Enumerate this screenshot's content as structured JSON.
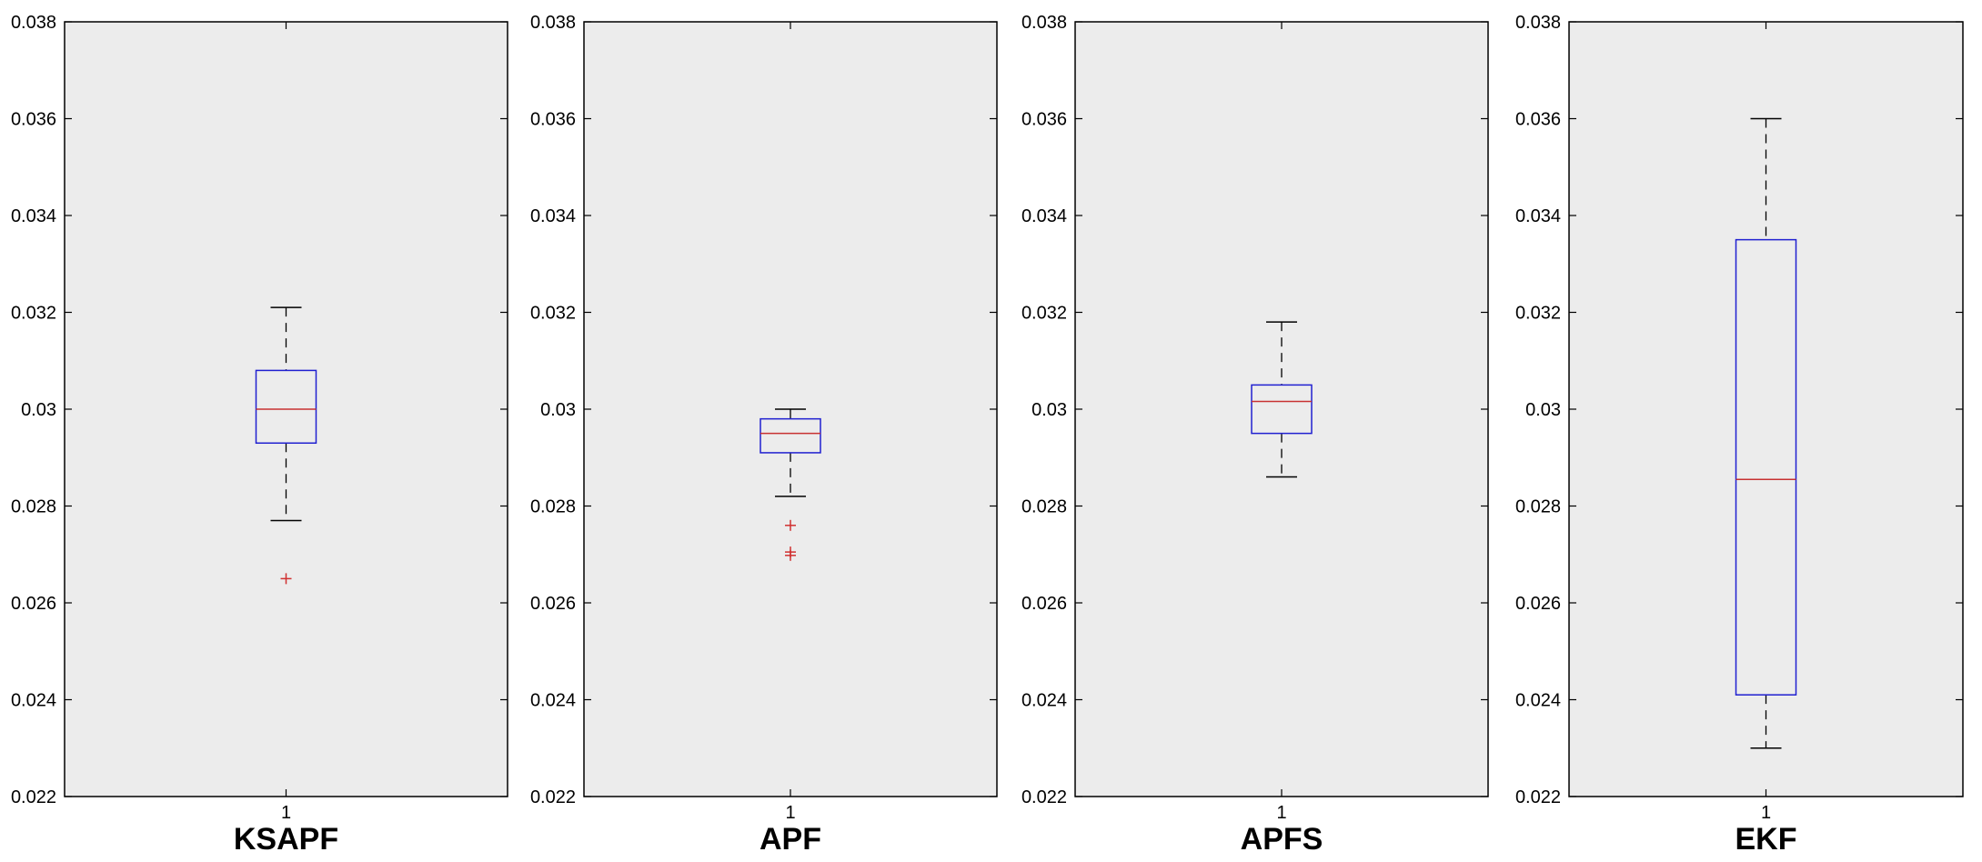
{
  "chart_data": [
    {
      "type": "boxplot",
      "title": "KSAPF",
      "categories": [
        "1"
      ],
      "ylim": [
        0.022,
        0.038
      ],
      "yticks": [
        "0.022",
        "0.024",
        "0.026",
        "0.028",
        "0.03",
        "0.032",
        "0.034",
        "0.036",
        "0.038"
      ],
      "boxes": [
        {
          "whisker_low": 0.0277,
          "q1": 0.0293,
          "median": 0.03,
          "q3": 0.0308,
          "whisker_high": 0.0321,
          "outliers": [
            0.0265
          ]
        }
      ],
      "grid": false
    },
    {
      "type": "boxplot",
      "title": "APF",
      "categories": [
        "1"
      ],
      "ylim": [
        0.022,
        0.038
      ],
      "yticks": [
        "0.022",
        "0.024",
        "0.026",
        "0.028",
        "0.03",
        "0.032",
        "0.034",
        "0.036",
        "0.038"
      ],
      "boxes": [
        {
          "whisker_low": 0.0282,
          "q1": 0.0291,
          "median": 0.0295,
          "q3": 0.0298,
          "whisker_high": 0.03,
          "outliers": [
            0.0276,
            0.02705,
            0.02698
          ]
        }
      ],
      "grid": false
    },
    {
      "type": "boxplot",
      "title": "APFS",
      "categories": [
        "1"
      ],
      "ylim": [
        0.022,
        0.038
      ],
      "yticks": [
        "0.022",
        "0.024",
        "0.026",
        "0.028",
        "0.03",
        "0.032",
        "0.034",
        "0.036",
        "0.038"
      ],
      "boxes": [
        {
          "whisker_low": 0.0286,
          "q1": 0.0295,
          "median": 0.03016,
          "q3": 0.0305,
          "whisker_high": 0.0318,
          "outliers": []
        }
      ],
      "grid": false
    },
    {
      "type": "boxplot",
      "title": "EKF",
      "categories": [
        "1"
      ],
      "ylim": [
        0.022,
        0.038
      ],
      "yticks": [
        "0.022",
        "0.024",
        "0.026",
        "0.028",
        "0.03",
        "0.032",
        "0.034",
        "0.036",
        "0.038"
      ],
      "boxes": [
        {
          "whisker_low": 0.023,
          "q1": 0.0241,
          "median": 0.02855,
          "q3": 0.0335,
          "whisker_high": 0.036,
          "outliers": []
        }
      ],
      "grid": false
    }
  ],
  "colors": {
    "axes_background": "#ececec",
    "box": "#2020d0",
    "median": "#c83232",
    "whisker": "#000000",
    "outlier": "#d03030"
  }
}
